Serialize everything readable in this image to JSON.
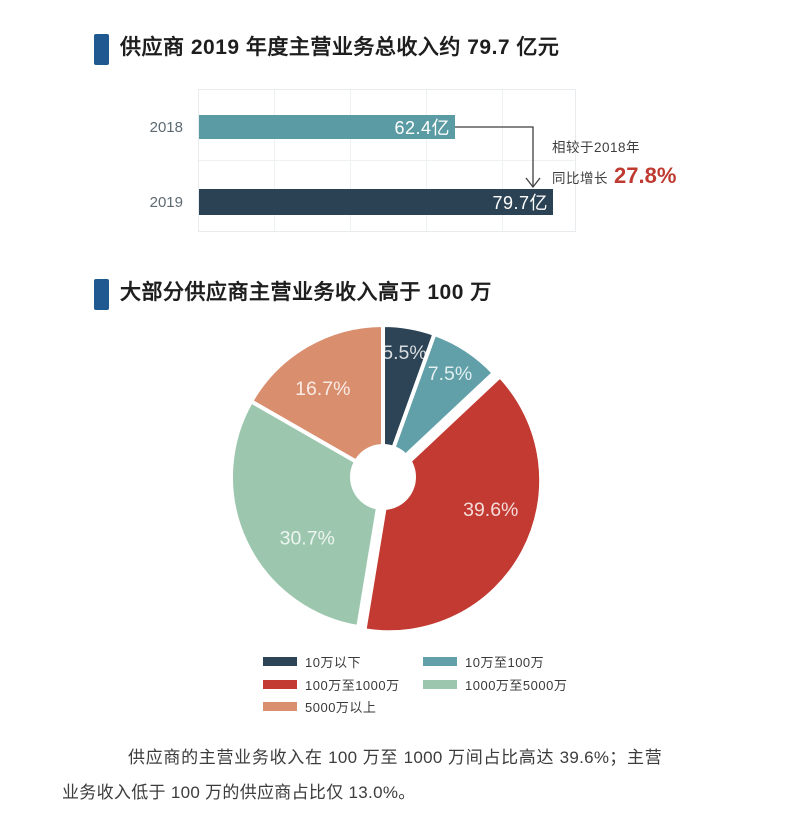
{
  "page": {
    "accent_blue": "#20598f",
    "accent_red": "#bf3a31",
    "background": "#ffffff"
  },
  "section1": {
    "title": "供应商 2019 年度主营业务总收入约 79.7 亿元"
  },
  "section2": {
    "title": "大部分供应商主营业务收入高于 100 万"
  },
  "chart_data": [
    {
      "type": "bar",
      "orientation": "horizontal",
      "title": "供应商 2019 年度主营业务总收入约 79.7 亿元",
      "categories": [
        "2018",
        "2019"
      ],
      "values": [
        62.4,
        79.7
      ],
      "value_labels": [
        "62.4亿",
        "79.7亿"
      ],
      "unit": "亿",
      "colors": [
        "#5b9ba3",
        "#2b4254"
      ],
      "grid": true,
      "annotation": {
        "line1": "相较于2018年",
        "line2_prefix": "同比增长",
        "highlight": "27.8%",
        "highlight_color": "#bf3a31"
      }
    },
    {
      "type": "pie",
      "donut": true,
      "title": "大部分供应商主营业务收入高于 100 万",
      "categories": [
        "10万以下",
        "10万至100万",
        "100万至1000万",
        "1000万至5000万",
        "5000万以上"
      ],
      "values": [
        5.5,
        7.5,
        39.6,
        30.7,
        16.7
      ],
      "labels": [
        "5.5%",
        "7.5%",
        "39.6%",
        "30.7%",
        "16.7%"
      ],
      "colors": [
        "#2c4456",
        "#61a0a8",
        "#c23a31",
        "#9cc7ae",
        "#d98e6e"
      ],
      "start_angle": 0,
      "exploded_index": 2,
      "legend_position": "bottom"
    }
  ],
  "footer": {
    "text": "供应商的主营业务收入在 100 万至 1000 万间占比高达 39.6%；主营业务收入低于 100 万的供应商占比仅 13.0%。"
  }
}
